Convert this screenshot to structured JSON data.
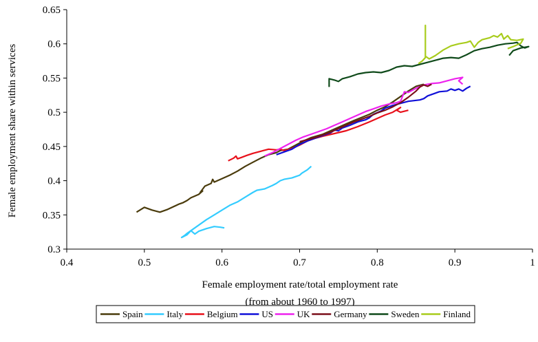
{
  "chart_data": {
    "type": "line",
    "title": "",
    "xlabel": "Female employment rate/total employment rate",
    "xlabel_note": "(from about 1960 to 1997)",
    "ylabel": "Female employment share within services",
    "xlim": [
      0.4,
      1.0
    ],
    "ylim": [
      0.3,
      0.65
    ],
    "xticks": [
      "0.4",
      "0.5",
      "0.6",
      "0.7",
      "0.8",
      "0.9",
      "1"
    ],
    "yticks": [
      "0.3",
      "0.35",
      "0.4",
      "0.45",
      "0.5",
      "0.55",
      "0.6",
      "0.65"
    ],
    "grid": false,
    "legend_position": "bottom",
    "series": [
      {
        "name": "Spain",
        "color": "#4a3b0c",
        "points": [
          [
            0.49,
            0.354
          ],
          [
            0.5,
            0.361
          ],
          [
            0.51,
            0.357
          ],
          [
            0.52,
            0.354
          ],
          [
            0.53,
            0.358
          ],
          [
            0.545,
            0.366
          ],
          [
            0.55,
            0.368
          ],
          [
            0.555,
            0.371
          ],
          [
            0.56,
            0.375
          ],
          [
            0.57,
            0.38
          ],
          [
            0.575,
            0.385
          ],
          [
            0.572,
            0.383
          ],
          [
            0.578,
            0.392
          ],
          [
            0.586,
            0.396
          ],
          [
            0.588,
            0.402
          ],
          [
            0.59,
            0.398
          ],
          [
            0.6,
            0.403
          ],
          [
            0.61,
            0.408
          ],
          [
            0.62,
            0.414
          ],
          [
            0.63,
            0.421
          ],
          [
            0.64,
            0.427
          ],
          [
            0.65,
            0.433
          ],
          [
            0.66,
            0.438
          ],
          [
            0.67,
            0.441
          ],
          [
            0.675,
            0.444
          ],
          [
            0.685,
            0.446
          ],
          [
            0.69,
            0.449
          ],
          [
            0.7,
            0.455
          ],
          [
            0.705,
            0.458
          ],
          [
            0.715,
            0.463
          ],
          [
            0.73,
            0.468
          ],
          [
            0.75,
            0.478
          ],
          [
            0.77,
            0.488
          ],
          [
            0.79,
            0.497
          ],
          [
            0.8,
            0.503
          ],
          [
            0.81,
            0.508
          ],
          [
            0.82,
            0.515
          ],
          [
            0.83,
            0.523
          ],
          [
            0.84,
            0.531
          ],
          [
            0.85,
            0.538
          ],
          [
            0.86,
            0.541
          ]
        ]
      },
      {
        "name": "Italy",
        "color": "#33ccff",
        "points": [
          [
            0.603,
            0.331
          ],
          [
            0.598,
            0.332
          ],
          [
            0.59,
            0.333
          ],
          [
            0.58,
            0.33
          ],
          [
            0.57,
            0.326
          ],
          [
            0.565,
            0.322
          ],
          [
            0.56,
            0.327
          ],
          [
            0.555,
            0.323
          ],
          [
            0.552,
            0.32
          ],
          [
            0.548,
            0.317
          ],
          [
            0.555,
            0.321
          ],
          [
            0.56,
            0.327
          ],
          [
            0.57,
            0.335
          ],
          [
            0.58,
            0.343
          ],
          [
            0.59,
            0.35
          ],
          [
            0.6,
            0.357
          ],
          [
            0.61,
            0.364
          ],
          [
            0.62,
            0.369
          ],
          [
            0.63,
            0.376
          ],
          [
            0.64,
            0.383
          ],
          [
            0.645,
            0.386
          ],
          [
            0.655,
            0.388
          ],
          [
            0.665,
            0.393
          ],
          [
            0.67,
            0.396
          ],
          [
            0.675,
            0.4
          ],
          [
            0.68,
            0.402
          ],
          [
            0.69,
            0.404
          ],
          [
            0.695,
            0.406
          ],
          [
            0.7,
            0.408
          ],
          [
            0.703,
            0.411
          ],
          [
            0.71,
            0.416
          ],
          [
            0.715,
            0.421
          ]
        ]
      },
      {
        "name": "Belgium",
        "color": "#e8101a",
        "points": [
          [
            0.608,
            0.429
          ],
          [
            0.615,
            0.433
          ],
          [
            0.618,
            0.436
          ],
          [
            0.62,
            0.432
          ],
          [
            0.625,
            0.434
          ],
          [
            0.632,
            0.437
          ],
          [
            0.64,
            0.44
          ],
          [
            0.65,
            0.443
          ],
          [
            0.66,
            0.446
          ],
          [
            0.67,
            0.445
          ],
          [
            0.675,
            0.446
          ],
          [
            0.68,
            0.444
          ],
          [
            0.69,
            0.447
          ],
          [
            0.7,
            0.452
          ],
          [
            0.71,
            0.458
          ],
          [
            0.72,
            0.462
          ],
          [
            0.73,
            0.465
          ],
          [
            0.745,
            0.469
          ],
          [
            0.76,
            0.473
          ],
          [
            0.775,
            0.479
          ],
          [
            0.79,
            0.486
          ],
          [
            0.8,
            0.491
          ],
          [
            0.81,
            0.496
          ],
          [
            0.82,
            0.5
          ],
          [
            0.83,
            0.507
          ],
          [
            0.825,
            0.503
          ],
          [
            0.83,
            0.5
          ],
          [
            0.84,
            0.503
          ]
        ]
      },
      {
        "name": "US",
        "color": "#1010d8",
        "points": [
          [
            0.67,
            0.438
          ],
          [
            0.68,
            0.442
          ],
          [
            0.69,
            0.446
          ],
          [
            0.7,
            0.453
          ],
          [
            0.71,
            0.458
          ],
          [
            0.72,
            0.462
          ],
          [
            0.73,
            0.466
          ],
          [
            0.74,
            0.47
          ],
          [
            0.745,
            0.474
          ],
          [
            0.75,
            0.473
          ],
          [
            0.755,
            0.477
          ],
          [
            0.765,
            0.481
          ],
          [
            0.775,
            0.486
          ],
          [
            0.785,
            0.489
          ],
          [
            0.79,
            0.492
          ],
          [
            0.795,
            0.497
          ],
          [
            0.805,
            0.502
          ],
          [
            0.81,
            0.506
          ],
          [
            0.82,
            0.51
          ],
          [
            0.83,
            0.513
          ],
          [
            0.84,
            0.516
          ],
          [
            0.855,
            0.518
          ],
          [
            0.86,
            0.52
          ],
          [
            0.865,
            0.524
          ],
          [
            0.875,
            0.528
          ],
          [
            0.88,
            0.53
          ],
          [
            0.89,
            0.531
          ],
          [
            0.895,
            0.534
          ],
          [
            0.9,
            0.532
          ],
          [
            0.905,
            0.534
          ],
          [
            0.91,
            0.531
          ],
          [
            0.915,
            0.535
          ],
          [
            0.92,
            0.538
          ]
        ]
      },
      {
        "name": "UK",
        "color": "#ee22ee",
        "points": [
          [
            0.655,
            0.436
          ],
          [
            0.665,
            0.441
          ],
          [
            0.675,
            0.447
          ],
          [
            0.685,
            0.453
          ],
          [
            0.695,
            0.459
          ],
          [
            0.705,
            0.464
          ],
          [
            0.715,
            0.468
          ],
          [
            0.725,
            0.472
          ],
          [
            0.735,
            0.476
          ],
          [
            0.745,
            0.481
          ],
          [
            0.755,
            0.486
          ],
          [
            0.765,
            0.491
          ],
          [
            0.775,
            0.496
          ],
          [
            0.785,
            0.501
          ],
          [
            0.795,
            0.505
          ],
          [
            0.805,
            0.509
          ],
          [
            0.815,
            0.512
          ],
          [
            0.825,
            0.514
          ],
          [
            0.83,
            0.516
          ],
          [
            0.835,
            0.53
          ],
          [
            0.84,
            0.529
          ],
          [
            0.85,
            0.535
          ],
          [
            0.86,
            0.54
          ],
          [
            0.87,
            0.542
          ],
          [
            0.88,
            0.543
          ],
          [
            0.89,
            0.546
          ],
          [
            0.9,
            0.549
          ],
          [
            0.91,
            0.551
          ],
          [
            0.905,
            0.546
          ],
          [
            0.91,
            0.541
          ]
        ]
      },
      {
        "name": "Germany",
        "color": "#7a0f1a",
        "points": [
          [
            0.7,
            0.457
          ],
          [
            0.71,
            0.46
          ],
          [
            0.72,
            0.463
          ],
          [
            0.73,
            0.467
          ],
          [
            0.74,
            0.471
          ],
          [
            0.75,
            0.476
          ],
          [
            0.76,
            0.481
          ],
          [
            0.77,
            0.486
          ],
          [
            0.78,
            0.49
          ],
          [
            0.79,
            0.494
          ],
          [
            0.8,
            0.499
          ],
          [
            0.81,
            0.503
          ],
          [
            0.82,
            0.508
          ],
          [
            0.83,
            0.514
          ],
          [
            0.84,
            0.522
          ],
          [
            0.85,
            0.531
          ],
          [
            0.855,
            0.537
          ],
          [
            0.86,
            0.54
          ],
          [
            0.865,
            0.538
          ],
          [
            0.87,
            0.541
          ]
        ]
      },
      {
        "name": "Sweden",
        "color": "#0f4a1a",
        "points": [
          [
            0.738,
            0.537
          ],
          [
            0.738,
            0.549
          ],
          [
            0.745,
            0.547
          ],
          [
            0.75,
            0.545
          ],
          [
            0.755,
            0.549
          ],
          [
            0.765,
            0.552
          ],
          [
            0.775,
            0.556
          ],
          [
            0.785,
            0.558
          ],
          [
            0.795,
            0.559
          ],
          [
            0.805,
            0.558
          ],
          [
            0.815,
            0.561
          ],
          [
            0.825,
            0.566
          ],
          [
            0.835,
            0.568
          ],
          [
            0.845,
            0.567
          ],
          [
            0.855,
            0.57
          ],
          [
            0.865,
            0.573
          ],
          [
            0.875,
            0.576
          ],
          [
            0.885,
            0.579
          ],
          [
            0.895,
            0.58
          ],
          [
            0.905,
            0.579
          ],
          [
            0.915,
            0.584
          ],
          [
            0.925,
            0.59
          ],
          [
            0.935,
            0.593
          ],
          [
            0.945,
            0.595
          ],
          [
            0.955,
            0.598
          ],
          [
            0.965,
            0.6
          ],
          [
            0.975,
            0.601
          ],
          [
            0.98,
            0.602
          ],
          [
            0.985,
            0.597
          ],
          [
            0.99,
            0.594
          ],
          [
            0.995,
            0.596
          ],
          [
            0.985,
            0.594
          ],
          [
            0.975,
            0.59
          ],
          [
            0.97,
            0.583
          ]
        ]
      },
      {
        "name": "Finland",
        "color": "#a8cc1c",
        "points": [
          [
            0.853,
            0.571
          ],
          [
            0.858,
            0.575
          ],
          [
            0.862,
            0.58
          ],
          [
            0.862,
            0.627
          ],
          [
            0.862,
            0.582
          ],
          [
            0.867,
            0.578
          ],
          [
            0.875,
            0.583
          ],
          [
            0.885,
            0.591
          ],
          [
            0.895,
            0.597
          ],
          [
            0.905,
            0.6
          ],
          [
            0.915,
            0.602
          ],
          [
            0.92,
            0.604
          ],
          [
            0.925,
            0.595
          ],
          [
            0.93,
            0.602
          ],
          [
            0.935,
            0.606
          ],
          [
            0.945,
            0.609
          ],
          [
            0.95,
            0.612
          ],
          [
            0.955,
            0.61
          ],
          [
            0.96,
            0.615
          ],
          [
            0.963,
            0.607
          ],
          [
            0.968,
            0.612
          ],
          [
            0.972,
            0.606
          ],
          [
            0.98,
            0.605
          ],
          [
            0.988,
            0.607
          ],
          [
            0.985,
            0.601
          ],
          [
            0.975,
            0.596
          ],
          [
            0.968,
            0.593
          ]
        ]
      }
    ]
  }
}
